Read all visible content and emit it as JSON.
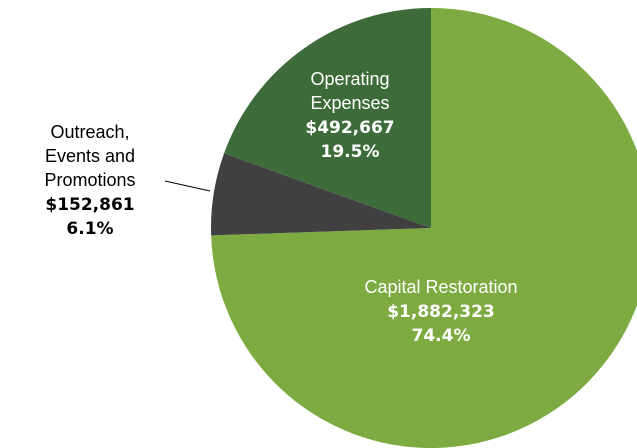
{
  "chart_data": {
    "type": "pie",
    "categories": [
      "Capital Restoration",
      "Outreach, Events and Promotions",
      "Operating Expenses"
    ],
    "values": [
      1882323,
      152861,
      492667
    ],
    "value_labels": [
      "$1,882,323",
      "$152,861",
      "$492,667"
    ],
    "percents": [
      74.4,
      6.1,
      19.5
    ],
    "percent_labels": [
      "74.4%",
      "6.1%",
      "19.5%"
    ],
    "colors": [
      "#7dab41",
      "#404040",
      "#3e6b3a"
    ]
  }
}
